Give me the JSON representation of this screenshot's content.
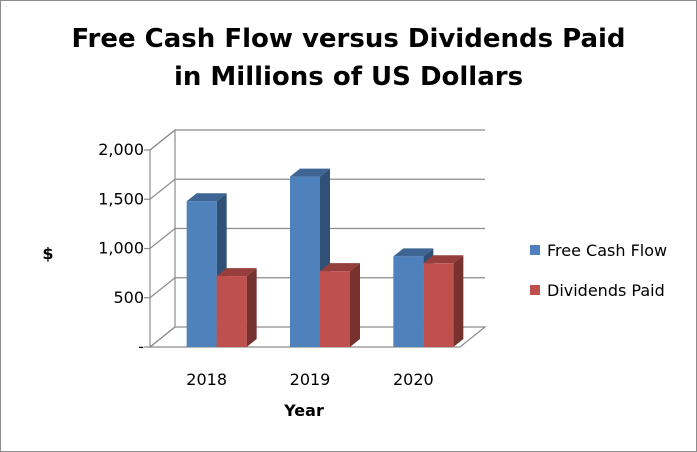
{
  "chart_data": {
    "type": "bar",
    "title_lines": [
      "Free Cash Flow versus Dividends Paid",
      "in Millions of US Dollars"
    ],
    "xlabel": "Year",
    "ylabel": "$",
    "categories": [
      "2018",
      "2019",
      "2020"
    ],
    "series": [
      {
        "name": "Free Cash Flow",
        "values": [
          1480,
          1730,
          920
        ],
        "color": "#4f81bd"
      },
      {
        "name": "Dividends Paid",
        "values": [
          720,
          770,
          850
        ],
        "color": "#c0504d"
      }
    ],
    "ylim": [
      0,
      2000
    ],
    "yticks": [
      {
        "value": 0,
        "label": "-"
      },
      {
        "value": 500,
        "label": "500"
      },
      {
        "value": 1000,
        "label": "1,000"
      },
      {
        "value": 1500,
        "label": "1,500"
      },
      {
        "value": 2000,
        "label": "2,000"
      }
    ],
    "grid": true,
    "style": "3d-clustered-column",
    "legend_position": "right"
  }
}
